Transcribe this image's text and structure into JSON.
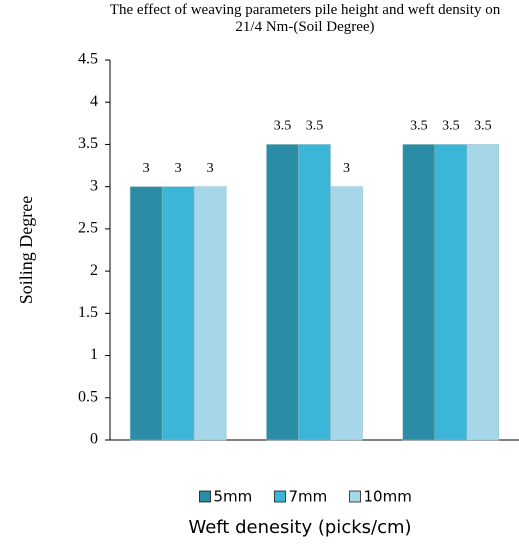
{
  "chart_data": {
    "type": "bar",
    "title": "The effect of weaving parameters  pile height and weft density on 21/4 Nm-(Soil Degree)",
    "x_label": "Weft denesity (picks/cm)",
    "y_label": "Soiling Degree",
    "categories": [
      null,
      null,
      null
    ],
    "series": [
      {
        "name": "5mm",
        "color": "#2b8ca6",
        "values": [
          3,
          3.5,
          3.5
        ]
      },
      {
        "name": "7mm",
        "color": "#3bb6d8",
        "values": [
          3,
          3.5,
          3.5
        ]
      },
      {
        "name": "10mm",
        "color": "#a6d7e8",
        "values": [
          3,
          3,
          3.5
        ]
      }
    ],
    "ylim": [
      0,
      4.5
    ],
    "yticks": [
      0,
      0.5,
      1,
      1.5,
      2,
      2.5,
      3,
      3.5,
      4,
      4.5
    ],
    "grid": false,
    "legend": "bottom"
  }
}
